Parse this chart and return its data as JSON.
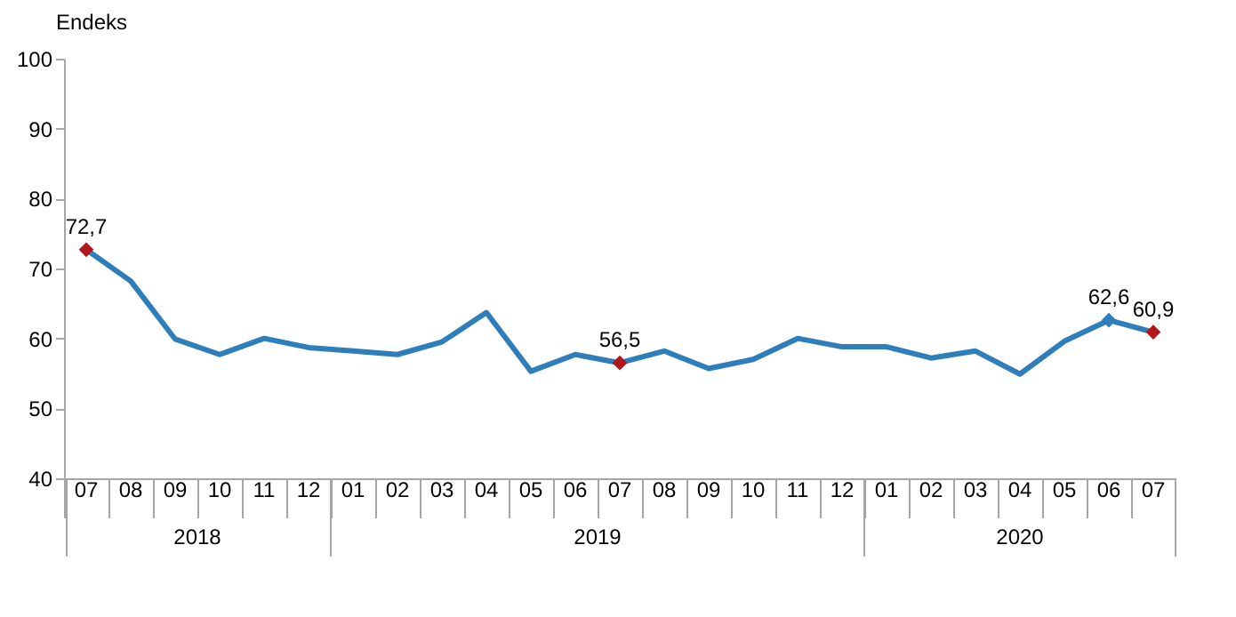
{
  "chart_data": {
    "type": "line",
    "ylabel": "Endeks",
    "categories": [
      "07",
      "08",
      "09",
      "10",
      "11",
      "12",
      "01",
      "02",
      "03",
      "04",
      "05",
      "06",
      "07",
      "08",
      "09",
      "10",
      "11",
      "12",
      "01",
      "02",
      "03",
      "04",
      "05",
      "06",
      "07"
    ],
    "annotations": [
      "2018",
      "2019",
      "2020"
    ],
    "ylim": [
      40,
      100
    ],
    "yticks": [
      40,
      50,
      60,
      70,
      80,
      90,
      100
    ],
    "series": [
      {
        "color": "#2e7ebb",
        "values": [
          72.7,
          68.2,
          59.9,
          57.7,
          60.0,
          58.7,
          58.2,
          57.7,
          59.5,
          63.7,
          55.3,
          57.7,
          56.5,
          58.2,
          55.7,
          57.0,
          60.0,
          58.8,
          58.8,
          57.2,
          58.2,
          54.9,
          59.6,
          62.6,
          60.9
        ],
        "value_labels": [
          "72,7",
          null,
          null,
          null,
          null,
          null,
          null,
          null,
          null,
          null,
          null,
          null,
          "56,5",
          null,
          null,
          null,
          null,
          null,
          null,
          null,
          null,
          null,
          null,
          "62,6",
          "60,9"
        ]
      },
      {
        "type": "scatter",
        "marker": "diamond",
        "values": [
          72.7,
          null,
          null,
          null,
          null,
          null,
          null,
          null,
          null,
          null,
          null,
          null,
          56.5,
          null,
          null,
          null,
          null,
          null,
          null,
          null,
          null,
          null,
          null,
          62.6,
          60.9
        ],
        "colors": [
          "#b2171c",
          null,
          null,
          null,
          null,
          null,
          null,
          null,
          null,
          null,
          null,
          null,
          "#b2171c",
          null,
          null,
          null,
          null,
          null,
          null,
          null,
          null,
          null,
          null,
          "#2e7ebb",
          "#b2171c"
        ]
      }
    ]
  }
}
